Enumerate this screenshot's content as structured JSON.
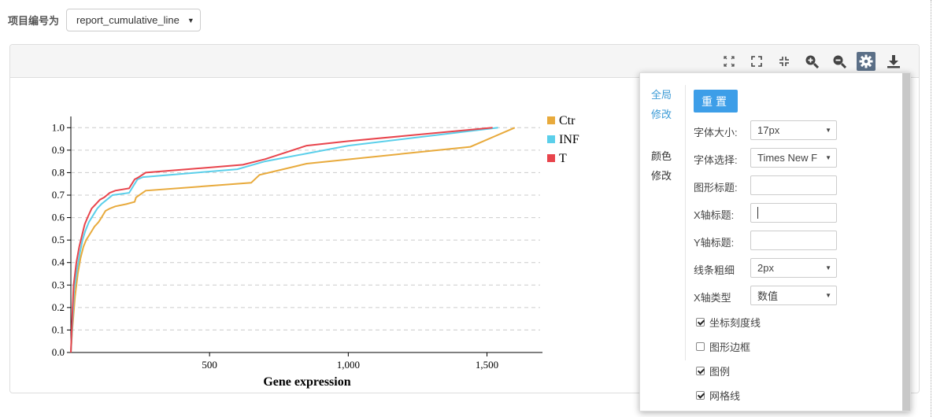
{
  "header": {
    "project_label": "项目编号为",
    "project_value": "report_cumulative_line"
  },
  "toolbar": {
    "icons": [
      "shrink-icon",
      "fullscreen-icon",
      "compress-icon",
      "zoom-in-icon",
      "zoom-out-icon",
      "gear-icon",
      "download-icon"
    ],
    "active": "gear-icon",
    "active_color": "#5b6f87"
  },
  "settings": {
    "side_global": [
      "全局",
      "修改"
    ],
    "side_color": [
      "颜色",
      "修改"
    ],
    "reset_label": "重置",
    "font_size_label": "字体大小:",
    "font_size_value": "17px",
    "font_family_label": "字体选择:",
    "font_family_value": "Times New F",
    "title_label": "图形标题:",
    "title_value": "",
    "xtitle_label": "X轴标题:",
    "xtitle_value": "",
    "ytitle_label": "Y轴标题:",
    "ytitle_value": "",
    "line_width_label": "线条粗细",
    "line_width_value": "2px",
    "xtype_label": "X轴类型",
    "xtype_value": "数值",
    "checkboxes": [
      {
        "label": "坐标刻度线",
        "checked": true
      },
      {
        "label": "图形边框",
        "checked": false
      },
      {
        "label": "图例",
        "checked": true
      },
      {
        "label": "网格线",
        "checked": true
      }
    ]
  },
  "chart_data": {
    "type": "line",
    "xlabel": "Gene expression",
    "ylabel": "",
    "title": "",
    "xlim": [
      0,
      1700
    ],
    "ylim": [
      0,
      1.05
    ],
    "xticks": [
      500,
      1000,
      1500
    ],
    "xtick_labels": [
      "500",
      "1,000",
      "1,500"
    ],
    "yticks": [
      0,
      0.1,
      0.2,
      0.3,
      0.4,
      0.5,
      0.6,
      0.7,
      0.8,
      0.9,
      1.0
    ],
    "ytick_labels": [
      "0.0",
      "0.1",
      "0.2",
      "0.3",
      "0.4",
      "0.5",
      "0.6",
      "0.7",
      "0.8",
      "0.9",
      "1.0"
    ],
    "grid": true,
    "legend_position": "top-right",
    "series": [
      {
        "name": "Ctr",
        "color": "#e8aa3c",
        "x": [
          0,
          5,
          15,
          25,
          35,
          45,
          55,
          70,
          85,
          100,
          110,
          125,
          140,
          160,
          200,
          230,
          235,
          270,
          650,
          680,
          850,
          1440,
          1600
        ],
        "y": [
          0,
          0.1,
          0.25,
          0.35,
          0.42,
          0.47,
          0.5,
          0.53,
          0.56,
          0.58,
          0.6,
          0.63,
          0.64,
          0.65,
          0.66,
          0.67,
          0.69,
          0.72,
          0.755,
          0.79,
          0.84,
          0.915,
          1.0
        ]
      },
      {
        "name": "INF",
        "color": "#5bcfea",
        "x": [
          0,
          5,
          12,
          22,
          32,
          42,
          52,
          65,
          80,
          95,
          110,
          130,
          150,
          210,
          230,
          240,
          260,
          600,
          700,
          850,
          1000,
          1540
        ],
        "y": [
          0,
          0.12,
          0.28,
          0.37,
          0.44,
          0.5,
          0.54,
          0.58,
          0.61,
          0.64,
          0.66,
          0.68,
          0.7,
          0.71,
          0.75,
          0.77,
          0.78,
          0.815,
          0.85,
          0.885,
          0.92,
          1.0
        ]
      },
      {
        "name": "T",
        "color": "#e8444c",
        "x": [
          0,
          4,
          10,
          20,
          30,
          40,
          50,
          60,
          75,
          90,
          105,
          120,
          140,
          160,
          210,
          230,
          245,
          270,
          620,
          700,
          850,
          1000,
          1520
        ],
        "y": [
          0,
          0.13,
          0.3,
          0.4,
          0.47,
          0.52,
          0.57,
          0.6,
          0.64,
          0.66,
          0.68,
          0.69,
          0.71,
          0.72,
          0.73,
          0.77,
          0.78,
          0.8,
          0.835,
          0.86,
          0.92,
          0.94,
          1.0
        ]
      }
    ]
  }
}
